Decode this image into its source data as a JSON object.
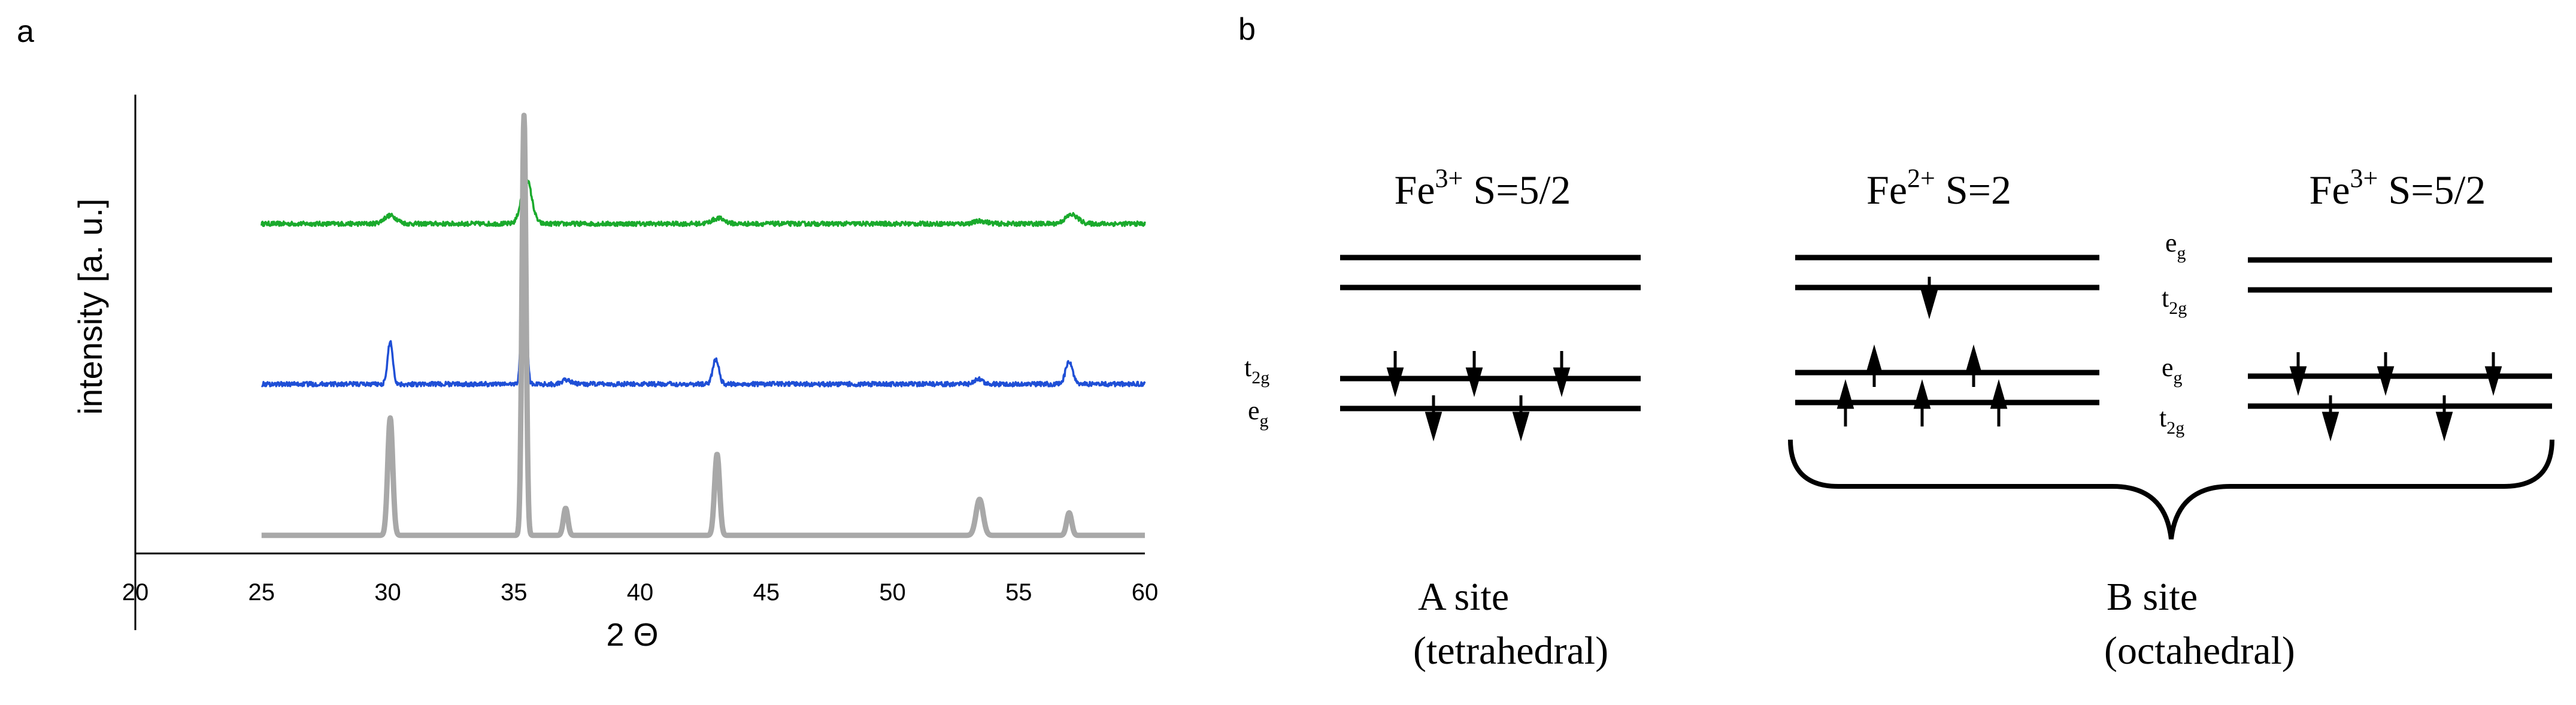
{
  "panel_a": {
    "label": "a",
    "chart_data": {
      "type": "line",
      "title": "",
      "xlabel": "2 Θ",
      "ylabel": "intensity [a. u.]",
      "xlim": [
        20,
        60
      ],
      "ylim": [
        0,
        1
      ],
      "x_ticks": [
        "20",
        "25",
        "30",
        "35",
        "40",
        "45",
        "50",
        "55",
        "60"
      ],
      "x_tick_values": [
        20,
        25,
        30,
        35,
        40,
        45,
        50,
        55,
        60
      ],
      "series": [
        {
          "name": "green pattern",
          "color": "#1aaa2c",
          "x_range": [
            25,
            60
          ],
          "baseline": 0.73,
          "noise": 0.005,
          "peaks": [
            {
              "x": 30.1,
              "height": 0.018,
              "width": 0.25
            },
            {
              "x": 35.5,
              "height": 0.1,
              "width": 0.2
            },
            {
              "x": 43.1,
              "height": 0.012,
              "width": 0.25
            },
            {
              "x": 53.5,
              "height": 0.006,
              "width": 0.25
            },
            {
              "x": 57.1,
              "height": 0.02,
              "width": 0.25
            }
          ]
        },
        {
          "name": "blue pattern",
          "color": "#1f4fd6",
          "x_range": [
            25,
            60
          ],
          "baseline": 0.375,
          "noise": 0.005,
          "peaks": [
            {
              "x": 30.1,
              "height": 0.095,
              "width": 0.1
            },
            {
              "x": 35.4,
              "height": 0.355,
              "width": 0.09
            },
            {
              "x": 37.1,
              "height": 0.01,
              "width": 0.15
            },
            {
              "x": 43.0,
              "height": 0.055,
              "width": 0.12
            },
            {
              "x": 53.4,
              "height": 0.012,
              "width": 0.15
            },
            {
              "x": 57.0,
              "height": 0.05,
              "width": 0.14
            }
          ]
        },
        {
          "name": "reference pattern",
          "color": "#a8a8a8",
          "x_range": [
            25,
            60
          ],
          "baseline": 0.04,
          "noise": 0.0,
          "peaks": [
            {
              "x": 30.1,
              "height": 0.26,
              "width": 0.1
            },
            {
              "x": 35.4,
              "height": 0.93,
              "width": 0.08
            },
            {
              "x": 37.05,
              "height": 0.06,
              "width": 0.09
            },
            {
              "x": 43.05,
              "height": 0.18,
              "width": 0.1
            },
            {
              "x": 53.45,
              "height": 0.08,
              "width": 0.14
            },
            {
              "x": 57.0,
              "height": 0.05,
              "width": 0.1
            }
          ]
        }
      ]
    }
  },
  "panel_b": {
    "label": "b",
    "a_site": {
      "ion": "Fe",
      "charge": "3+",
      "spin": " S=5/2",
      "upper_label_main": "t",
      "upper_label_sub": "2g",
      "lower_label_main": "e",
      "lower_label_sub": "g",
      "site_name": "A site",
      "site_geometry": "(tetrahedral)"
    },
    "b_site_fe2": {
      "ion": "Fe",
      "charge": "2+",
      "spin": " S=2"
    },
    "b_site_fe3": {
      "ion": "Fe",
      "charge": "3+",
      "spin": " S=5/2"
    },
    "b_site_labels": {
      "l1_main": "e",
      "l1_sub": "g",
      "l2_main": "t",
      "l2_sub": "2g",
      "l3_main": "e",
      "l3_sub": "g",
      "l4_main": "t",
      "l4_sub": "2g"
    },
    "b_site": {
      "site_name": "B site",
      "site_geometry": "(octahedral)"
    }
  }
}
